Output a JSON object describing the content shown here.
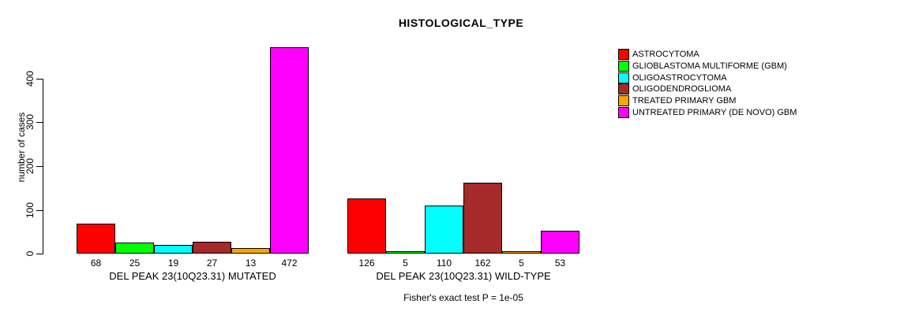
{
  "chart_data": {
    "type": "bar",
    "title": "HISTOLOGICAL_TYPE",
    "ylabel": "number of cases",
    "yticks": [
      0,
      100,
      200,
      300,
      400
    ],
    "ylim": [
      0,
      472
    ],
    "grid": false,
    "legend_position": "right",
    "categories": [
      "DEL PEAK 23(10Q23.31) MUTATED",
      "DEL PEAK 23(10Q23.31) WILD-TYPE"
    ],
    "series": [
      {
        "name": "ASTROCYTOMA",
        "color": "#FF0000",
        "values": [
          68,
          126
        ]
      },
      {
        "name": "GLIOBLASTOMA MULTIFORME (GBM)",
        "color": "#00FF00",
        "values": [
          25,
          5
        ]
      },
      {
        "name": "OLIGOASTROCYTOMA",
        "color": "#00FFFF",
        "values": [
          19,
          110
        ]
      },
      {
        "name": "OLIGODENDROGLIOMA",
        "color": "#A52A2A",
        "values": [
          27,
          162
        ]
      },
      {
        "name": "TREATED PRIMARY GBM",
        "color": "#FFA500",
        "values": [
          13,
          5
        ]
      },
      {
        "name": "UNTREATED PRIMARY (DE NOVO) GBM",
        "color": "#FF00FF",
        "values": [
          472,
          53
        ]
      }
    ],
    "bar_value_labels_shown": true,
    "annotation": "Fisher's exact test P = 1e-05",
    "axis_color": "#000000",
    "background_color": "#FFFFFF"
  }
}
